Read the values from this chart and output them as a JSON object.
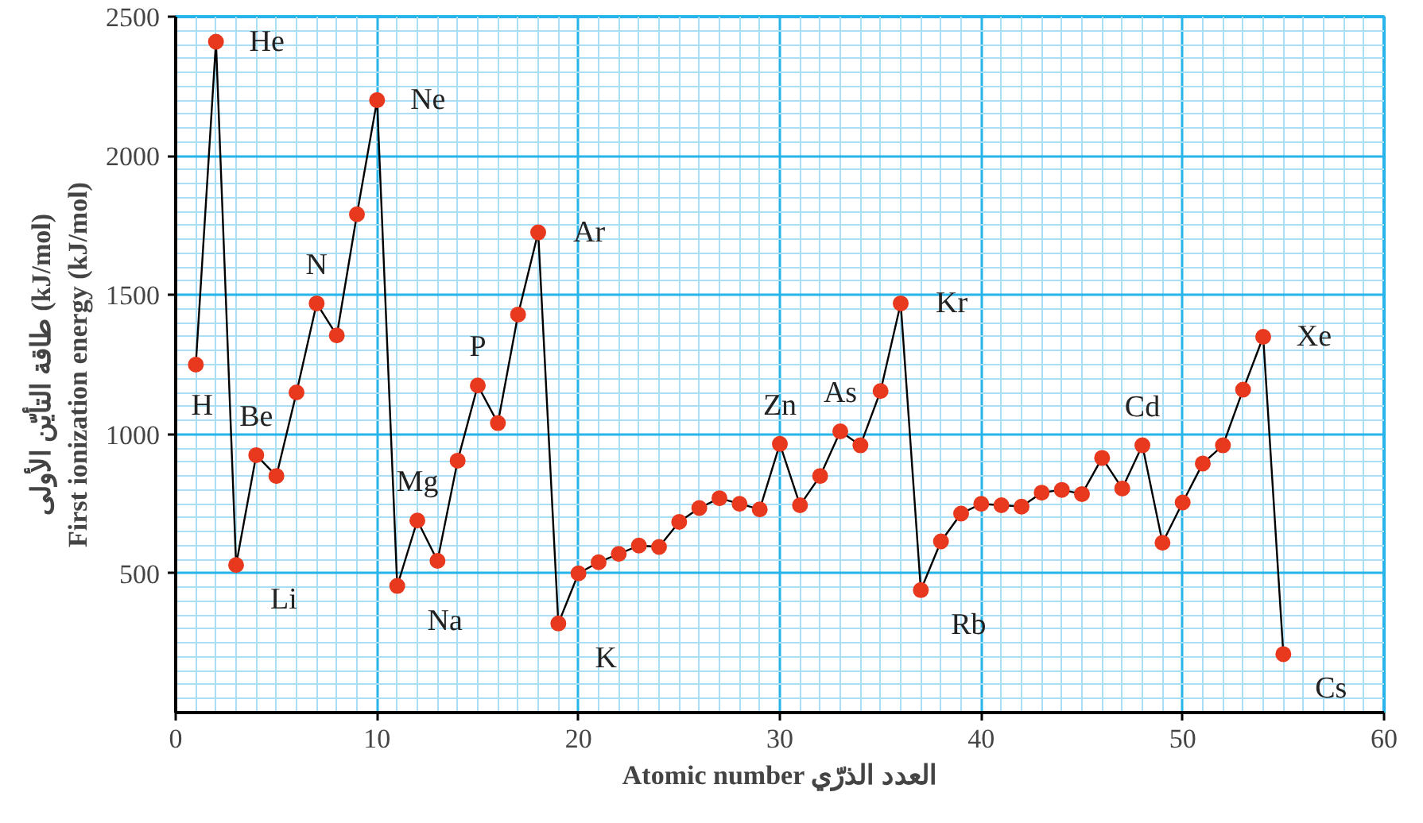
{
  "chart_data": {
    "type": "line",
    "xlabel": "Atomic number العدد الذرّي",
    "ylabel": "طاقة التأيّن الأولى (kJ/mol)\nFirst ionization energy (kJ/mol)",
    "x": [
      1,
      2,
      3,
      4,
      5,
      6,
      7,
      8,
      9,
      10,
      11,
      12,
      13,
      14,
      15,
      16,
      17,
      18,
      19,
      20,
      21,
      22,
      23,
      24,
      25,
      26,
      27,
      28,
      29,
      30,
      31,
      32,
      33,
      34,
      35,
      36,
      37,
      38,
      39,
      40,
      41,
      42,
      43,
      44,
      45,
      46,
      47,
      48,
      49,
      50,
      51,
      52,
      53,
      54,
      55
    ],
    "values": [
      1250,
      2410,
      530,
      925,
      850,
      1150,
      1470,
      1355,
      1790,
      2200,
      455,
      690,
      545,
      905,
      1175,
      1040,
      1430,
      1725,
      320,
      500,
      540,
      570,
      600,
      595,
      685,
      735,
      770,
      750,
      730,
      965,
      745,
      850,
      1010,
      960,
      1155,
      1470,
      440,
      615,
      715,
      750,
      745,
      740,
      790,
      800,
      785,
      915,
      805,
      960,
      610,
      755,
      895,
      960,
      1160,
      1350,
      210
    ],
    "color": "#000000",
    "colors": [
      "#e8391e",
      "#e8391e",
      "#e8391e",
      "#e8391e",
      "#e8391e",
      "#e8391e",
      "#e8391e",
      "#e8391e",
      "#e8391e",
      "#e8391e",
      "#e8391e",
      "#e8391e",
      "#e8391e",
      "#e8391e",
      "#e8391e",
      "#e8391e",
      "#e8391e",
      "#e8391e",
      "#e8391e",
      "#e8391e",
      "#e8391e",
      "#e8391e",
      "#e8391e",
      "#e8391e",
      "#e8391e",
      "#e8391e",
      "#e8391e",
      "#e8391e",
      "#e8391e",
      "#e8391e",
      "#e8391e",
      "#e8391e",
      "#e8391e",
      "#e8391e",
      "#e8391e",
      "#e8391e",
      "#e8391e",
      "#e8391e",
      "#e8391e",
      "#e8391e",
      "#e8391e",
      "#e8391e",
      "#e8391e",
      "#e8391e",
      "#e8391e",
      "#e8391e",
      "#e8391e",
      "#e8391e",
      "#e8391e",
      "#e8391e",
      "#e8391e",
      "#e8391e",
      "#e8391e",
      "#e8391e",
      "#e8391e"
    ],
    "marker": "circle",
    "line_style": "solid",
    "xlim": [
      0,
      60
    ],
    "ylim": [
      0,
      2500
    ],
    "xticks": [
      0,
      10,
      20,
      30,
      40,
      50,
      60
    ],
    "yticks": [
      500,
      1000,
      1500,
      2000,
      2500
    ],
    "grid": true,
    "annotations": [
      {
        "text": "H",
        "x": 1,
        "y": 1250
      },
      {
        "text": "He",
        "x": 2,
        "y": 2410
      },
      {
        "text": "Li",
        "x": 3,
        "y": 530
      },
      {
        "text": "Be",
        "x": 4,
        "y": 925
      },
      {
        "text": "N",
        "x": 7,
        "y": 1470
      },
      {
        "text": "Ne",
        "x": 10,
        "y": 2200
      },
      {
        "text": "Na",
        "x": 11,
        "y": 455
      },
      {
        "text": "Mg",
        "x": 12,
        "y": 690
      },
      {
        "text": "P",
        "x": 15,
        "y": 1175
      },
      {
        "text": "Ar",
        "x": 18,
        "y": 1725
      },
      {
        "text": "K",
        "x": 19,
        "y": 320
      },
      {
        "text": "Zn",
        "x": 30,
        "y": 965
      },
      {
        "text": "As",
        "x": 33,
        "y": 1010
      },
      {
        "text": "Kr",
        "x": 36,
        "y": 1470
      },
      {
        "text": "Rb",
        "x": 37,
        "y": 440
      },
      {
        "text": "Cd",
        "x": 48,
        "y": 960
      },
      {
        "text": "Xe",
        "x": 54,
        "y": 1350
      },
      {
        "text": "Cs",
        "x": 55,
        "y": 210
      }
    ]
  }
}
